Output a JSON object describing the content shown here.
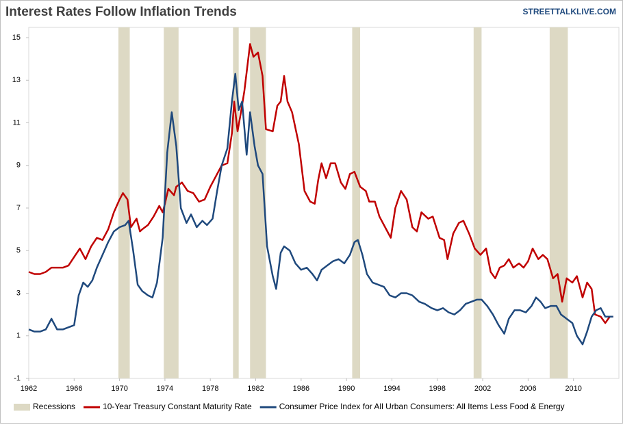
{
  "chart_data": {
    "type": "line",
    "title": "Interest Rates Follow Inflation Trends",
    "source": "STREETTALKLIVE.COM",
    "xlim": [
      1962,
      2014
    ],
    "xticks": [
      1962,
      1966,
      1970,
      1974,
      1978,
      1982,
      1986,
      1990,
      1994,
      1998,
      2002,
      2006,
      2010
    ],
    "ylim": [
      -1,
      15
    ],
    "yticks": [
      -1,
      1,
      3,
      5,
      7,
      9,
      11,
      13,
      15
    ],
    "grid": false,
    "legend": "bottom",
    "recession_label": "Recessions",
    "recession_color": "#ddd9c4",
    "recessions": [
      [
        1969.9,
        1970.9
      ],
      [
        1973.9,
        1975.2
      ],
      [
        1980.0,
        1980.5
      ],
      [
        1981.5,
        1982.9
      ],
      [
        1990.5,
        1991.2
      ],
      [
        2001.2,
        2001.9
      ],
      [
        2007.9,
        2009.5
      ]
    ],
    "series": [
      {
        "name": "10-Year Treasury Constant Maturity Rate",
        "color": "#c00000",
        "x": [
          1962,
          1962.5,
          1963,
          1963.5,
          1964,
          1964.5,
          1965,
          1965.5,
          1966,
          1966.5,
          1967,
          1967.5,
          1968,
          1968.5,
          1969,
          1969.5,
          1970,
          1970.3,
          1970.7,
          1971,
          1971.5,
          1971.8,
          1972,
          1972.5,
          1973,
          1973.5,
          1973.8,
          1974,
          1974.3,
          1974.8,
          1975,
          1975.5,
          1976,
          1976.5,
          1977,
          1977.5,
          1978,
          1978.5,
          1979,
          1979.5,
          1979.9,
          1980.1,
          1980.4,
          1980.7,
          1981,
          1981.5,
          1981.8,
          1982.2,
          1982.6,
          1982.9,
          1983.5,
          1983.9,
          1984.2,
          1984.5,
          1984.8,
          1985.2,
          1985.8,
          1986.3,
          1986.8,
          1987.2,
          1987.5,
          1987.8,
          1988.2,
          1988.6,
          1989,
          1989.5,
          1989.9,
          1990.3,
          1990.7,
          1991.2,
          1991.7,
          1992,
          1992.5,
          1992.9,
          1993.5,
          1993.9,
          1994.3,
          1994.8,
          1995.3,
          1995.8,
          1996.2,
          1996.6,
          1997.2,
          1997.6,
          1998.2,
          1998.6,
          1998.9,
          1999.4,
          1999.9,
          2000.3,
          2000.8,
          2001.3,
          2001.8,
          2002.3,
          2002.7,
          2003.1,
          2003.5,
          2003.9,
          2004.3,
          2004.7,
          2005.2,
          2005.6,
          2006.0,
          2006.4,
          2006.9,
          2007.3,
          2007.7,
          2008.2,
          2008.6,
          2009.0,
          2009.4,
          2009.9,
          2010.3,
          2010.8,
          2011.2,
          2011.6,
          2011.9,
          2012.4,
          2012.8,
          2013.2,
          2013.5
        ],
        "values": [
          4.0,
          3.9,
          3.9,
          4.0,
          4.2,
          4.2,
          4.2,
          4.3,
          4.7,
          5.1,
          4.6,
          5.2,
          5.6,
          5.5,
          6.0,
          6.8,
          7.4,
          7.7,
          7.4,
          6.1,
          6.5,
          5.9,
          6.0,
          6.2,
          6.6,
          7.1,
          6.8,
          7.2,
          7.9,
          7.6,
          8.0,
          8.2,
          7.8,
          7.7,
          7.3,
          7.4,
          8.0,
          8.5,
          9.0,
          9.1,
          10.5,
          12.0,
          10.6,
          11.5,
          12.5,
          14.7,
          14.1,
          14.3,
          13.2,
          10.7,
          10.6,
          11.8,
          12.0,
          13.2,
          12.0,
          11.5,
          10.0,
          7.8,
          7.3,
          7.2,
          8.3,
          9.1,
          8.4,
          9.1,
          9.1,
          8.2,
          7.9,
          8.6,
          8.7,
          8.0,
          7.8,
          7.3,
          7.3,
          6.6,
          6.0,
          5.6,
          7.0,
          7.8,
          7.4,
          6.1,
          5.9,
          6.8,
          6.5,
          6.6,
          5.6,
          5.5,
          4.6,
          5.8,
          6.3,
          6.4,
          5.8,
          5.1,
          4.8,
          5.1,
          4.0,
          3.7,
          4.2,
          4.3,
          4.6,
          4.2,
          4.4,
          4.2,
          4.5,
          5.1,
          4.6,
          4.8,
          4.6,
          3.7,
          3.9,
          2.6,
          3.7,
          3.5,
          3.8,
          2.8,
          3.5,
          3.2,
          2.0,
          1.9,
          1.6,
          1.9,
          1.9
        ]
      },
      {
        "name": "Consumer Price Index for All Urban Consumers: All Items Less Food & Energy",
        "color": "#1f497d",
        "x": [
          1962,
          1962.5,
          1963,
          1963.5,
          1964,
          1964.5,
          1965,
          1965.5,
          1966,
          1966.4,
          1966.8,
          1967.2,
          1967.6,
          1968,
          1968.5,
          1969,
          1969.5,
          1970,
          1970.5,
          1970.8,
          1971.2,
          1971.6,
          1972,
          1972.5,
          1972.9,
          1973.3,
          1973.8,
          1974.2,
          1974.6,
          1975,
          1975.4,
          1975.9,
          1976.3,
          1976.8,
          1977.3,
          1977.7,
          1978.2,
          1978.6,
          1979.0,
          1979.5,
          1979.9,
          1980.2,
          1980.5,
          1980.8,
          1981.2,
          1981.5,
          1981.9,
          1982.2,
          1982.6,
          1983.0,
          1983.5,
          1983.8,
          1984.2,
          1984.5,
          1985,
          1985.5,
          1986,
          1986.5,
          1987,
          1987.4,
          1987.8,
          1988.3,
          1988.8,
          1989.3,
          1989.8,
          1990.3,
          1990.7,
          1991,
          1991.4,
          1991.8,
          1992.3,
          1992.8,
          1993.3,
          1993.8,
          1994.3,
          1994.8,
          1995.3,
          1995.8,
          1996.4,
          1996.9,
          1997.5,
          1998,
          1998.5,
          1999,
          1999.5,
          2000,
          2000.5,
          2001,
          2001.5,
          2001.9,
          2002.4,
          2002.9,
          2003.4,
          2003.9,
          2004.3,
          2004.8,
          2005.3,
          2005.8,
          2006.3,
          2006.7,
          2007.1,
          2007.5,
          2008.0,
          2008.5,
          2008.9,
          2009.4,
          2009.9,
          2010.3,
          2010.8,
          2011.2,
          2011.6,
          2012.0,
          2012.4,
          2012.8,
          2013.5
        ],
        "values": [
          1.3,
          1.2,
          1.2,
          1.3,
          1.8,
          1.3,
          1.3,
          1.4,
          1.5,
          2.9,
          3.5,
          3.3,
          3.6,
          4.2,
          4.8,
          5.4,
          5.9,
          6.1,
          6.2,
          6.4,
          5.0,
          3.4,
          3.1,
          2.9,
          2.8,
          3.5,
          5.6,
          9.6,
          11.5,
          9.9,
          7.0,
          6.3,
          6.7,
          6.1,
          6.4,
          6.2,
          6.5,
          7.8,
          9.0,
          9.8,
          12.0,
          13.3,
          11.6,
          12.0,
          9.5,
          11.5,
          9.9,
          9.0,
          8.6,
          5.2,
          3.8,
          3.2,
          4.9,
          5.2,
          5.0,
          4.4,
          4.1,
          4.2,
          3.9,
          3.6,
          4.1,
          4.3,
          4.5,
          4.6,
          4.4,
          4.8,
          5.4,
          5.5,
          4.8,
          3.9,
          3.5,
          3.4,
          3.3,
          2.9,
          2.8,
          3.0,
          3.0,
          2.9,
          2.6,
          2.5,
          2.3,
          2.2,
          2.3,
          2.1,
          2.0,
          2.2,
          2.5,
          2.6,
          2.7,
          2.7,
          2.4,
          2.0,
          1.5,
          1.1,
          1.8,
          2.2,
          2.2,
          2.1,
          2.4,
          2.8,
          2.6,
          2.3,
          2.4,
          2.4,
          2.0,
          1.8,
          1.6,
          1.0,
          0.6,
          1.2,
          1.9,
          2.2,
          2.3,
          1.9,
          1.9
        ]
      }
    ]
  }
}
